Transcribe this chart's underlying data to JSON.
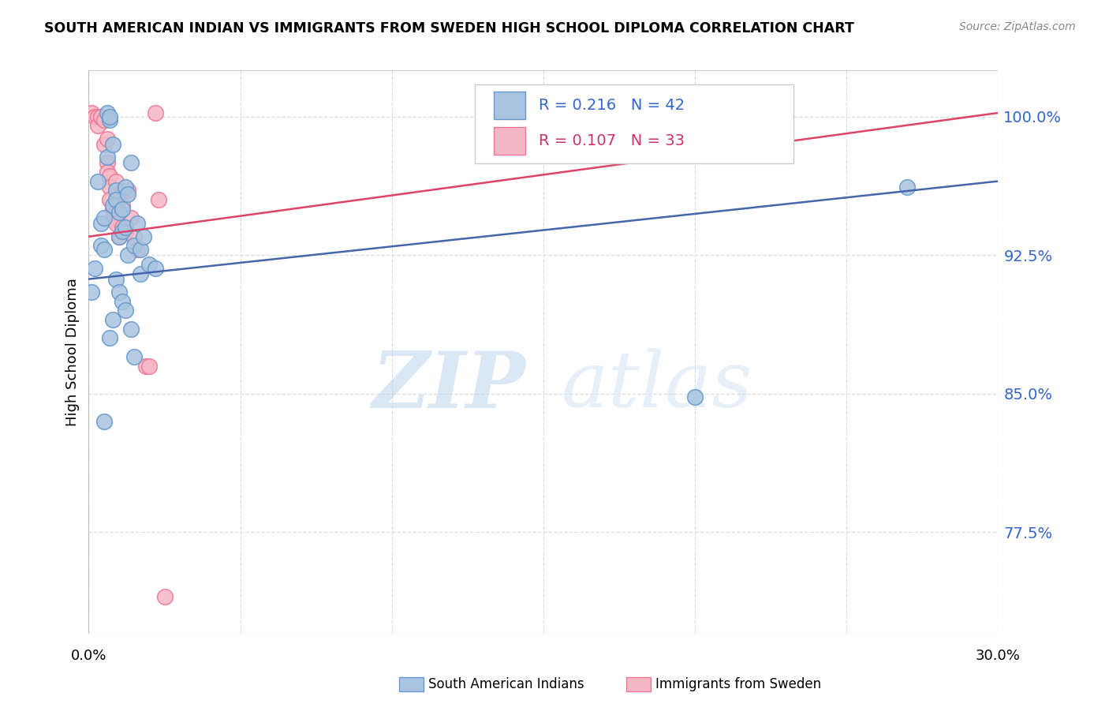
{
  "title": "SOUTH AMERICAN INDIAN VS IMMIGRANTS FROM SWEDEN HIGH SCHOOL DIPLOMA CORRELATION CHART",
  "source": "Source: ZipAtlas.com",
  "ylabel": "High School Diploma",
  "ytick_vals": [
    77.5,
    85.0,
    92.5,
    100.0
  ],
  "ytick_labels": [
    "77.5%",
    "85.0%",
    "92.5%",
    "100.0%"
  ],
  "xtick_vals": [
    0.0,
    0.05,
    0.1,
    0.15,
    0.2,
    0.25,
    0.3
  ],
  "xlim": [
    0.0,
    0.3
  ],
  "ylim": [
    72.0,
    102.5
  ],
  "legend_text1": "R = 0.216   N = 42",
  "legend_text2": "R = 0.107   N = 33",
  "blue_color": "#A8C4E0",
  "pink_color": "#F4B8C4",
  "blue_edge_color": "#6699CC",
  "pink_edge_color": "#EE7799",
  "blue_line_color": "#4466AA",
  "pink_line_color": "#DD4466",
  "blue_scatter": [
    [
      0.001,
      90.5
    ],
    [
      0.002,
      91.8
    ],
    [
      0.003,
      96.5
    ],
    [
      0.004,
      94.2
    ],
    [
      0.004,
      93.0
    ],
    [
      0.005,
      94.5
    ],
    [
      0.005,
      92.8
    ],
    [
      0.006,
      97.8
    ],
    [
      0.006,
      100.2
    ],
    [
      0.007,
      99.8
    ],
    [
      0.007,
      100.0
    ],
    [
      0.008,
      98.5
    ],
    [
      0.008,
      95.2
    ],
    [
      0.009,
      96.0
    ],
    [
      0.009,
      95.5
    ],
    [
      0.01,
      94.8
    ],
    [
      0.01,
      93.5
    ],
    [
      0.011,
      95.0
    ],
    [
      0.011,
      93.8
    ],
    [
      0.012,
      96.2
    ],
    [
      0.012,
      94.0
    ],
    [
      0.013,
      95.8
    ],
    [
      0.013,
      92.5
    ],
    [
      0.014,
      97.5
    ],
    [
      0.015,
      93.0
    ],
    [
      0.016,
      94.2
    ],
    [
      0.017,
      92.8
    ],
    [
      0.017,
      91.5
    ],
    [
      0.018,
      93.5
    ],
    [
      0.02,
      92.0
    ],
    [
      0.022,
      91.8
    ],
    [
      0.005,
      83.5
    ],
    [
      0.007,
      88.0
    ],
    [
      0.008,
      89.0
    ],
    [
      0.009,
      91.2
    ],
    [
      0.01,
      90.5
    ],
    [
      0.011,
      90.0
    ],
    [
      0.012,
      89.5
    ],
    [
      0.014,
      88.5
    ],
    [
      0.015,
      87.0
    ],
    [
      0.2,
      84.8
    ],
    [
      0.27,
      96.2
    ]
  ],
  "pink_scatter": [
    [
      0.001,
      100.2
    ],
    [
      0.002,
      100.0
    ],
    [
      0.003,
      100.0
    ],
    [
      0.003,
      99.5
    ],
    [
      0.004,
      100.0
    ],
    [
      0.004,
      100.0
    ],
    [
      0.005,
      99.8
    ],
    [
      0.005,
      98.5
    ],
    [
      0.006,
      98.8
    ],
    [
      0.006,
      97.5
    ],
    [
      0.006,
      97.0
    ],
    [
      0.007,
      96.8
    ],
    [
      0.007,
      96.2
    ],
    [
      0.007,
      95.5
    ],
    [
      0.008,
      95.0
    ],
    [
      0.008,
      94.5
    ],
    [
      0.009,
      96.5
    ],
    [
      0.009,
      94.8
    ],
    [
      0.009,
      94.2
    ],
    [
      0.01,
      95.5
    ],
    [
      0.01,
      93.5
    ],
    [
      0.011,
      95.2
    ],
    [
      0.011,
      94.0
    ],
    [
      0.012,
      93.8
    ],
    [
      0.013,
      96.0
    ],
    [
      0.014,
      94.5
    ],
    [
      0.015,
      93.5
    ],
    [
      0.016,
      92.8
    ],
    [
      0.019,
      86.5
    ],
    [
      0.022,
      100.2
    ],
    [
      0.023,
      95.5
    ],
    [
      0.02,
      86.5
    ],
    [
      0.025,
      74.0
    ]
  ],
  "blue_trend_x": [
    0.0,
    0.3
  ],
  "blue_trend_y": [
    91.2,
    96.5
  ],
  "pink_trend_x": [
    0.0,
    0.3
  ],
  "pink_trend_y": [
    93.5,
    100.2
  ],
  "watermark_zip": "ZIP",
  "watermark_atlas": "atlas",
  "grid_color": "#DDDDDD",
  "background_color": "#FFFFFF",
  "legend_label1": "South American Indians",
  "legend_label2": "Immigrants from Sweden",
  "text_color_blue": "#3366CC",
  "text_color_pink": "#CC3366"
}
